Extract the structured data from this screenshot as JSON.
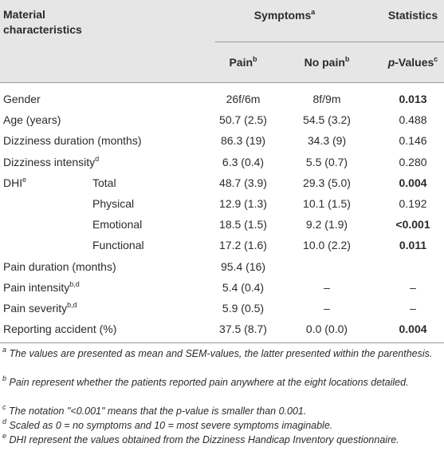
{
  "header": {
    "col1": "Material characteristics",
    "group": {
      "text": "Symptoms",
      "sup": "a"
    },
    "stats": "Statistics",
    "sub": [
      {
        "text": "Pain",
        "sup": "b"
      },
      {
        "text": "No pain",
        "sup": "b"
      },
      {
        "italic": "p",
        "text": "-Values",
        "sup": "c"
      }
    ]
  },
  "rows": [
    {
      "label": "Gender",
      "pain": "26f/6m",
      "nopain": "8f/9m",
      "p": "0.013",
      "bold": true
    },
    {
      "label": "Age (years)",
      "pain": "50.7 (2.5)",
      "nopain": "54.5 (3.2)",
      "p": "0.488",
      "bold": false
    },
    {
      "label": "Dizziness duration (months)",
      "pain": "86.3 (19)",
      "nopain": "34.3 (9)",
      "p": "0.146",
      "bold": false
    },
    {
      "label": "Dizziness intensity",
      "sup": "d",
      "pain": "6.3 (0.4)",
      "nopain": "5.5 (0.7)",
      "p": "0.280",
      "bold": false
    },
    {
      "label": "DHI",
      "sup": "e",
      "sublabel": "Total",
      "pain": "48.7 (3.9)",
      "nopain": "29.3 (5.0)",
      "p": "0.004",
      "bold": true
    },
    {
      "sublabel": "Physical",
      "pain": "12.9 (1.3)",
      "nopain": "10.1 (1.5)",
      "p": "0.192",
      "bold": false
    },
    {
      "sublabel": "Emotional",
      "pain": "18.5 (1.5)",
      "nopain": "9.2 (1.9)",
      "p": "<0.001",
      "bold": true
    },
    {
      "sublabel": "Functional",
      "pain": "17.2 (1.6)",
      "nopain": "10.0 (2.2)",
      "p": "0.011",
      "bold": true
    },
    {
      "label": "Pain duration (months)",
      "pain": "95.4 (16)",
      "bold": false
    },
    {
      "label": "Pain intensity",
      "sup": "b,d",
      "pain": "5.4 (0.4)",
      "nopain": "–",
      "p": "–",
      "bold": false
    },
    {
      "label": "Pain severity",
      "sup": "b,d",
      "pain": "5.9 (0.5)",
      "nopain": "–",
      "p": "–",
      "bold": false
    },
    {
      "label": "Reporting accident (%)",
      "pain": "37.5 (8.7)",
      "nopain": "0.0 (0.0)",
      "p": "0.004",
      "bold": true
    }
  ],
  "footnotes": [
    {
      "mark": "a",
      "text": "The values are presented as mean and SEM-values, the latter presented within the parenthesis."
    },
    {
      "mark": "b",
      "text": "Pain represent whether the patients reported pain anywhere at the eight locations detailed."
    },
    {
      "mark": "c",
      "text": "The notation \"<0.001\" means that the p-value is smaller than 0.001."
    },
    {
      "mark": "d",
      "text": "Scaled as 0 = no symptoms and 10 = most severe symptoms imaginable."
    },
    {
      "mark": "e",
      "text": "DHI represent the values obtained from the Dizziness Handicap Inventory questionnaire."
    }
  ]
}
